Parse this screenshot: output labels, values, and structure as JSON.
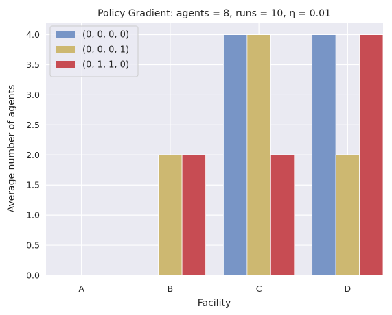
{
  "chart_data": {
    "type": "bar",
    "title": "Policy Gradient: agents = 8, runs = 10, η = 0.01",
    "xlabel": "Facility",
    "ylabel": "Average number of agents",
    "categories": [
      "A",
      "B",
      "C",
      "D"
    ],
    "ylim": [
      0,
      4.2
    ],
    "yticks": [
      "0.0",
      "0.5",
      "1.0",
      "1.5",
      "2.0",
      "2.5",
      "3.0",
      "3.5",
      "4.0"
    ],
    "grid": true,
    "legend_position": "top-left",
    "series": [
      {
        "name": "(0, 0, 0, 0)",
        "color": "#7895c6",
        "values": [
          0,
          0,
          4,
          4
        ]
      },
      {
        "name": "(0, 0, 0, 1)",
        "color": "#cdb871",
        "values": [
          0,
          2,
          4,
          2
        ]
      },
      {
        "name": "(0, 1, 1, 0)",
        "color": "#c74c53",
        "values": [
          0,
          2,
          2,
          4
        ]
      }
    ]
  }
}
